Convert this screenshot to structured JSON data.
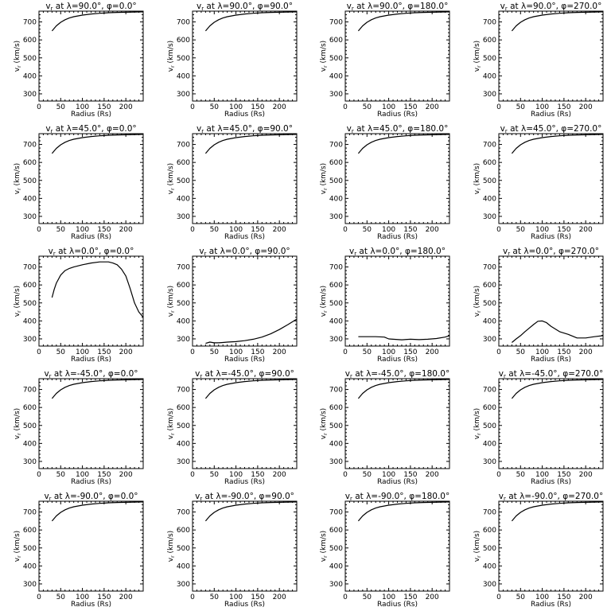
{
  "figure": {
    "panels_layout": "5 rows x 4 columns"
  },
  "chart_data": [
    {
      "type": "line",
      "title": "v_r at λ=90.0°, φ=0.0°",
      "xlabel": "Radius (Rs)",
      "ylabel": "v_r (km/s)",
      "xlim": [
        0,
        240
      ],
      "ylim": [
        260,
        760
      ],
      "xticks": [
        0,
        50,
        100,
        150,
        200
      ],
      "yticks": [
        300,
        400,
        500,
        600,
        700
      ],
      "x": [
        30,
        40,
        50,
        60,
        70,
        80,
        100,
        120,
        140,
        160,
        180,
        200,
        220,
        240
      ],
      "y": [
        650,
        678,
        698,
        712,
        722,
        729,
        738,
        744,
        748,
        751,
        753,
        754,
        755,
        756
      ]
    },
    {
      "type": "line",
      "title": "v_r at λ=90.0°, φ=90.0°",
      "xlabel": "Radius (Rs)",
      "ylabel": "v_r (km/s)",
      "xlim": [
        0,
        240
      ],
      "ylim": [
        260,
        760
      ],
      "xticks": [
        0,
        50,
        100,
        150,
        200
      ],
      "yticks": [
        300,
        400,
        500,
        600,
        700
      ],
      "x": [
        30,
        40,
        50,
        60,
        70,
        80,
        100,
        120,
        140,
        160,
        180,
        200,
        220,
        240
      ],
      "y": [
        650,
        678,
        698,
        712,
        722,
        729,
        738,
        744,
        748,
        751,
        753,
        754,
        755,
        756
      ]
    },
    {
      "type": "line",
      "title": "v_r at λ=90.0°, φ=180.0°",
      "xlabel": "Radius (Rs)",
      "ylabel": "v_r (km/s)",
      "xlim": [
        0,
        240
      ],
      "ylim": [
        260,
        760
      ],
      "xticks": [
        0,
        50,
        100,
        150,
        200
      ],
      "yticks": [
        300,
        400,
        500,
        600,
        700
      ],
      "x": [
        30,
        40,
        50,
        60,
        70,
        80,
        100,
        120,
        140,
        160,
        180,
        200,
        220,
        240
      ],
      "y": [
        650,
        678,
        698,
        712,
        722,
        729,
        738,
        744,
        748,
        751,
        753,
        754,
        755,
        756
      ]
    },
    {
      "type": "line",
      "title": "v_r at λ=90.0°, φ=270.0°",
      "xlabel": "Radius (Rs)",
      "ylabel": "v_r (km/s)",
      "xlim": [
        0,
        240
      ],
      "ylim": [
        260,
        760
      ],
      "xticks": [
        0,
        50,
        100,
        150,
        200
      ],
      "yticks": [
        300,
        400,
        500,
        600,
        700
      ],
      "x": [
        30,
        40,
        50,
        60,
        70,
        80,
        100,
        120,
        140,
        160,
        180,
        200,
        220,
        240
      ],
      "y": [
        650,
        678,
        698,
        712,
        722,
        729,
        738,
        744,
        748,
        751,
        753,
        754,
        755,
        756
      ]
    },
    {
      "type": "line",
      "title": "v_r at λ=45.0°, φ=0.0°",
      "xlabel": "Radius (Rs)",
      "ylabel": "v_r (km/s)",
      "xlim": [
        0,
        240
      ],
      "ylim": [
        260,
        760
      ],
      "xticks": [
        0,
        50,
        100,
        150,
        200
      ],
      "yticks": [
        300,
        400,
        500,
        600,
        700
      ],
      "x": [
        30,
        40,
        50,
        60,
        70,
        80,
        100,
        120,
        140,
        160,
        180,
        200,
        220,
        240
      ],
      "y": [
        650,
        678,
        698,
        712,
        722,
        729,
        738,
        744,
        748,
        751,
        753,
        754,
        755,
        756
      ]
    },
    {
      "type": "line",
      "title": "v_r at λ=45.0°, φ=90.0°",
      "xlabel": "Radius (Rs)",
      "ylabel": "v_r (km/s)",
      "xlim": [
        0,
        240
      ],
      "ylim": [
        260,
        760
      ],
      "xticks": [
        0,
        50,
        100,
        150,
        200
      ],
      "yticks": [
        300,
        400,
        500,
        600,
        700
      ],
      "x": [
        30,
        40,
        50,
        60,
        70,
        80,
        100,
        120,
        140,
        160,
        180,
        200,
        220,
        240
      ],
      "y": [
        650,
        678,
        698,
        712,
        722,
        729,
        738,
        744,
        748,
        751,
        753,
        754,
        755,
        756
      ]
    },
    {
      "type": "line",
      "title": "v_r at λ=45.0°, φ=180.0°",
      "xlabel": "Radius (Rs)",
      "ylabel": "v_r (km/s)",
      "xlim": [
        0,
        240
      ],
      "ylim": [
        260,
        760
      ],
      "xticks": [
        0,
        50,
        100,
        150,
        200
      ],
      "yticks": [
        300,
        400,
        500,
        600,
        700
      ],
      "x": [
        30,
        40,
        50,
        60,
        70,
        80,
        100,
        120,
        140,
        160,
        180,
        200,
        220,
        240
      ],
      "y": [
        650,
        678,
        698,
        712,
        722,
        729,
        738,
        744,
        748,
        751,
        753,
        754,
        755,
        756
      ]
    },
    {
      "type": "line",
      "title": "v_r at λ=45.0°, φ=270.0°",
      "xlabel": "Radius (Rs)",
      "ylabel": "v_r (km/s)",
      "xlim": [
        0,
        240
      ],
      "ylim": [
        260,
        760
      ],
      "xticks": [
        0,
        50,
        100,
        150,
        200
      ],
      "yticks": [
        300,
        400,
        500,
        600,
        700
      ],
      "x": [
        30,
        40,
        50,
        60,
        70,
        80,
        100,
        120,
        140,
        160,
        180,
        200,
        220,
        240
      ],
      "y": [
        650,
        678,
        698,
        712,
        722,
        729,
        738,
        744,
        748,
        751,
        753,
        754,
        755,
        756
      ]
    },
    {
      "type": "line",
      "title": "v_r at λ=0.0°, φ=0.0°",
      "xlabel": "Radius (Rs)",
      "ylabel": "v_r (km/s)",
      "xlim": [
        0,
        240
      ],
      "ylim": [
        260,
        760
      ],
      "xticks": [
        0,
        50,
        100,
        150,
        200
      ],
      "yticks": [
        300,
        400,
        500,
        600,
        700
      ],
      "x": [
        30,
        35,
        40,
        50,
        60,
        70,
        80,
        100,
        120,
        140,
        160,
        170,
        180,
        190,
        200,
        210,
        220,
        230,
        240
      ],
      "y": [
        530,
        575,
        610,
        655,
        680,
        692,
        700,
        712,
        722,
        728,
        728,
        722,
        712,
        688,
        650,
        580,
        500,
        450,
        420
      ]
    },
    {
      "type": "line",
      "title": "v_r at λ=0.0°, φ=90.0°",
      "xlabel": "Radius (Rs)",
      "ylabel": "v_r (km/s)",
      "xlim": [
        0,
        240
      ],
      "ylim": [
        260,
        760
      ],
      "xticks": [
        0,
        50,
        100,
        150,
        200
      ],
      "yticks": [
        300,
        400,
        500,
        600,
        700
      ],
      "x": [
        30,
        40,
        50,
        60,
        70,
        80,
        100,
        120,
        140,
        160,
        180,
        200,
        220,
        240
      ],
      "y": [
        275,
        282,
        278,
        278,
        280,
        282,
        285,
        290,
        298,
        310,
        328,
        352,
        380,
        410
      ]
    },
    {
      "type": "line",
      "title": "v_r at λ=0.0°, φ=180.0°",
      "xlabel": "Radius (Rs)",
      "ylabel": "v_r (km/s)",
      "xlim": [
        0,
        240
      ],
      "ylim": [
        260,
        760
      ],
      "xticks": [
        0,
        50,
        100,
        150,
        200
      ],
      "yticks": [
        300,
        400,
        500,
        600,
        700
      ],
      "x": [
        30,
        50,
        70,
        90,
        100,
        110,
        130,
        150,
        170,
        190,
        210,
        230,
        240
      ],
      "y": [
        312,
        312,
        312,
        310,
        300,
        298,
        295,
        298,
        296,
        298,
        302,
        310,
        318
      ]
    },
    {
      "type": "line",
      "title": "v_r at λ=0.0°, φ=270.0°",
      "xlabel": "Radius (Rs)",
      "ylabel": "v_r (km/s)",
      "xlim": [
        0,
        240
      ],
      "ylim": [
        260,
        760
      ],
      "xticks": [
        0,
        50,
        100,
        150,
        200
      ],
      "yticks": [
        300,
        400,
        500,
        600,
        700
      ],
      "x": [
        30,
        40,
        50,
        60,
        70,
        80,
        90,
        100,
        110,
        120,
        140,
        160,
        180,
        200,
        220,
        240
      ],
      "y": [
        280,
        300,
        318,
        340,
        360,
        380,
        398,
        400,
        390,
        370,
        340,
        325,
        305,
        305,
        312,
        318
      ]
    },
    {
      "type": "line",
      "title": "v_r at λ=-45.0°, φ=0.0°",
      "xlabel": "Radius (Rs)",
      "ylabel": "v_r (km/s)",
      "xlim": [
        0,
        240
      ],
      "ylim": [
        260,
        760
      ],
      "xticks": [
        0,
        50,
        100,
        150,
        200
      ],
      "yticks": [
        300,
        400,
        500,
        600,
        700
      ],
      "x": [
        30,
        40,
        50,
        60,
        70,
        80,
        100,
        120,
        140,
        160,
        180,
        200,
        220,
        240
      ],
      "y": [
        650,
        678,
        698,
        712,
        722,
        729,
        738,
        744,
        748,
        751,
        753,
        754,
        755,
        756
      ]
    },
    {
      "type": "line",
      "title": "v_r at λ=-45.0°, φ=90.0°",
      "xlabel": "Radius (Rs)",
      "ylabel": "v_r (km/s)",
      "xlim": [
        0,
        240
      ],
      "ylim": [
        260,
        760
      ],
      "xticks": [
        0,
        50,
        100,
        150,
        200
      ],
      "yticks": [
        300,
        400,
        500,
        600,
        700
      ],
      "x": [
        30,
        40,
        50,
        60,
        70,
        80,
        100,
        120,
        140,
        160,
        180,
        200,
        220,
        240
      ],
      "y": [
        650,
        678,
        698,
        712,
        722,
        729,
        738,
        744,
        748,
        751,
        753,
        754,
        755,
        756
      ]
    },
    {
      "type": "line",
      "title": "v_r at λ=-45.0°, φ=180.0°",
      "xlabel": "Radius (Rs)",
      "ylabel": "v_r (km/s)",
      "xlim": [
        0,
        240
      ],
      "ylim": [
        260,
        760
      ],
      "xticks": [
        0,
        50,
        100,
        150,
        200
      ],
      "yticks": [
        300,
        400,
        500,
        600,
        700
      ],
      "x": [
        30,
        40,
        50,
        60,
        70,
        80,
        100,
        120,
        140,
        160,
        180,
        200,
        220,
        240
      ],
      "y": [
        650,
        678,
        698,
        712,
        722,
        729,
        738,
        744,
        748,
        751,
        753,
        754,
        755,
        756
      ]
    },
    {
      "type": "line",
      "title": "v_r at λ=-45.0°, φ=270.0°",
      "xlabel": "Radius (Rs)",
      "ylabel": "v_r (km/s)",
      "xlim": [
        0,
        240
      ],
      "ylim": [
        260,
        760
      ],
      "xticks": [
        0,
        50,
        100,
        150,
        200
      ],
      "yticks": [
        300,
        400,
        500,
        600,
        700
      ],
      "x": [
        30,
        40,
        50,
        60,
        70,
        80,
        100,
        120,
        140,
        160,
        180,
        200,
        220,
        240
      ],
      "y": [
        650,
        678,
        698,
        712,
        722,
        729,
        738,
        744,
        748,
        751,
        753,
        754,
        755,
        756
      ]
    },
    {
      "type": "line",
      "title": "v_r at λ=-90.0°, φ=0.0°",
      "xlabel": "Radius (Rs)",
      "ylabel": "v_r (km/s)",
      "xlim": [
        0,
        240
      ],
      "ylim": [
        260,
        760
      ],
      "xticks": [
        0,
        50,
        100,
        150,
        200
      ],
      "yticks": [
        300,
        400,
        500,
        600,
        700
      ],
      "x": [
        30,
        40,
        50,
        60,
        70,
        80,
        100,
        120,
        140,
        160,
        180,
        200,
        220,
        240
      ],
      "y": [
        650,
        678,
        698,
        712,
        722,
        729,
        738,
        744,
        748,
        751,
        753,
        754,
        755,
        756
      ]
    },
    {
      "type": "line",
      "title": "v_r at λ=-90.0°, φ=90.0°",
      "xlabel": "Radius (Rs)",
      "ylabel": "v_r (km/s)",
      "xlim": [
        0,
        240
      ],
      "ylim": [
        260,
        760
      ],
      "xticks": [
        0,
        50,
        100,
        150,
        200
      ],
      "yticks": [
        300,
        400,
        500,
        600,
        700
      ],
      "x": [
        30,
        40,
        50,
        60,
        70,
        80,
        100,
        120,
        140,
        160,
        180,
        200,
        220,
        240
      ],
      "y": [
        650,
        678,
        698,
        712,
        722,
        729,
        738,
        744,
        748,
        751,
        753,
        754,
        755,
        756
      ]
    },
    {
      "type": "line",
      "title": "v_r at λ=-90.0°, φ=180.0°",
      "xlabel": "Radius (Rs)",
      "ylabel": "v_r (km/s)",
      "xlim": [
        0,
        240
      ],
      "ylim": [
        260,
        760
      ],
      "xticks": [
        0,
        50,
        100,
        150,
        200
      ],
      "yticks": [
        300,
        400,
        500,
        600,
        700
      ],
      "x": [
        30,
        40,
        50,
        60,
        70,
        80,
        100,
        120,
        140,
        160,
        180,
        200,
        220,
        240
      ],
      "y": [
        650,
        678,
        698,
        712,
        722,
        729,
        738,
        744,
        748,
        751,
        753,
        754,
        755,
        756
      ]
    },
    {
      "type": "line",
      "title": "v_r at λ=-90.0°, φ=270.0°",
      "xlabel": "Radius (Rs)",
      "ylabel": "v_r (km/s)",
      "xlim": [
        0,
        240
      ],
      "ylim": [
        260,
        760
      ],
      "xticks": [
        0,
        50,
        100,
        150,
        200
      ],
      "yticks": [
        300,
        400,
        500,
        600,
        700
      ],
      "x": [
        30,
        40,
        50,
        60,
        70,
        80,
        100,
        120,
        140,
        160,
        180,
        200,
        220,
        240
      ],
      "y": [
        650,
        678,
        698,
        712,
        722,
        729,
        738,
        744,
        748,
        751,
        753,
        754,
        755,
        756
      ]
    }
  ]
}
